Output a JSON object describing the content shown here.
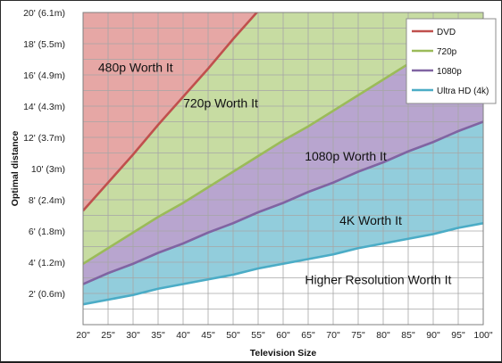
{
  "chart_data": {
    "type": "area",
    "title": "",
    "xlabel": "Television Size",
    "ylabel": "Optimal distance",
    "x": [
      20,
      25,
      30,
      35,
      40,
      45,
      50,
      55,
      60,
      65,
      70,
      75,
      80,
      85,
      90,
      95,
      100
    ],
    "x_tick_labels": [
      "20\"",
      "25\"",
      "30\"",
      "35\"",
      "40\"",
      "45\"",
      "50\"",
      "55\"",
      "60\"",
      "65\"",
      "70\"",
      "75\"",
      "80\"",
      "85\"",
      "90\"",
      "95\"",
      "100\""
    ],
    "y_ticks": [
      2,
      4,
      6,
      8,
      10,
      12,
      14,
      16,
      18,
      20
    ],
    "y_tick_labels": [
      "2' (0.6m)",
      "4' (1.2m)",
      "6' (1.8m)",
      "8' (2.4m)",
      "10' (3m)",
      "12' (3.7m)",
      "14' (4.3m)",
      "16' (4.9m)",
      "18' (5.5m)",
      "20' (6.1m)"
    ],
    "xlim": [
      20,
      100
    ],
    "ylim": [
      0,
      20
    ],
    "grid": true,
    "legend_position": "top-right",
    "series": [
      {
        "name": "DVD",
        "color": "#c0504d",
        "fill": "#e6a7a5",
        "values": [
          7.3,
          9.1,
          10.9,
          12.8,
          14.6,
          16.4,
          18.3,
          20.1,
          null,
          null,
          null,
          null,
          null,
          null,
          null,
          null,
          null
        ]
      },
      {
        "name": "720p",
        "color": "#9bbb59",
        "fill": "#c7dca2",
        "values": [
          3.9,
          4.9,
          5.9,
          6.9,
          7.8,
          8.8,
          9.8,
          10.8,
          11.8,
          12.7,
          13.7,
          14.7,
          15.7,
          16.7,
          17.6,
          18.6,
          19.6
        ]
      },
      {
        "name": "1080p",
        "color": "#8064a2",
        "fill": "#b8a5cf",
        "values": [
          2.6,
          3.3,
          3.9,
          4.6,
          5.2,
          5.9,
          6.5,
          7.2,
          7.8,
          8.5,
          9.1,
          9.8,
          10.4,
          11.1,
          11.7,
          12.4,
          13.0
        ]
      },
      {
        "name": "Ultra HD (4k)",
        "color": "#4bacc6",
        "fill": "#92cddc",
        "values": [
          1.3,
          1.6,
          1.9,
          2.3,
          2.6,
          2.9,
          3.2,
          3.6,
          3.9,
          4.2,
          4.5,
          4.9,
          5.2,
          5.5,
          5.8,
          6.2,
          6.5
        ]
      }
    ],
    "annotations": [
      {
        "text": "480p Worth It",
        "x": 30.5,
        "y": 16.5
      },
      {
        "text": "720p Worth It",
        "x": 47.5,
        "y": 14.2
      },
      {
        "text": "1080p Worth It",
        "x": 72.5,
        "y": 10.8
      },
      {
        "text": "4K Worth It",
        "x": 77.5,
        "y": 6.7
      },
      {
        "text": "Higher Resolution Worth It",
        "x": 79,
        "y": 2.9
      }
    ]
  }
}
